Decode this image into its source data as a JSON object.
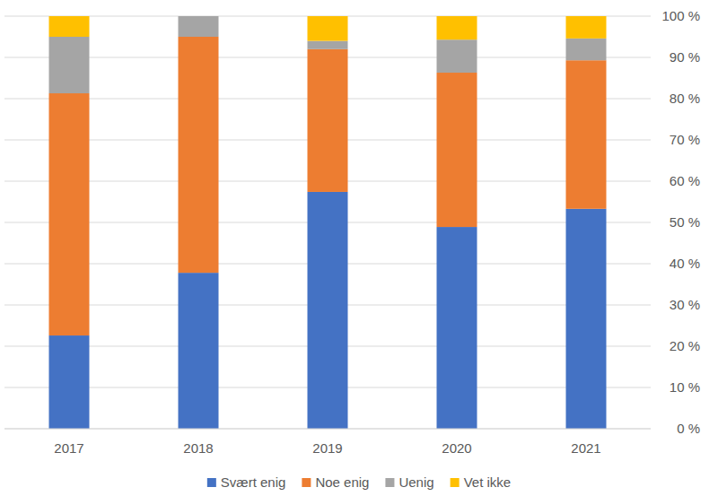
{
  "chart_data": {
    "type": "bar",
    "stacked": true,
    "grid": true,
    "legend": "bottom",
    "categories": [
      "2017",
      "2018",
      "2019",
      "2020",
      "2021"
    ],
    "series": [
      {
        "name": "Svært enig",
        "color": "#4472c4",
        "values": [
          22.6,
          37.8,
          57.4,
          48.9,
          53.3
        ]
      },
      {
        "name": "Noe enig",
        "color": "#ed7d31",
        "values": [
          58.7,
          57.2,
          34.6,
          37.4,
          36.0
        ]
      },
      {
        "name": "Uenig",
        "color": "#a5a5a5",
        "values": [
          13.7,
          5.0,
          2.0,
          8.0,
          5.3
        ]
      },
      {
        "name": "Vet ikke",
        "color": "#ffc000",
        "values": [
          5.0,
          0.0,
          6.0,
          5.7,
          5.4
        ]
      }
    ],
    "ylim": [
      0,
      100
    ],
    "yticks": [
      {
        "value": 0,
        "label": "0 %"
      },
      {
        "value": 10,
        "label": "10 %"
      },
      {
        "value": 20,
        "label": "20 %"
      },
      {
        "value": 30,
        "label": "30 %"
      },
      {
        "value": 40,
        "label": "40 %"
      },
      {
        "value": 50,
        "label": "50 %"
      },
      {
        "value": 60,
        "label": "60 %"
      },
      {
        "value": 70,
        "label": "70 %"
      },
      {
        "value": 80,
        "label": "80 %"
      },
      {
        "value": 90,
        "label": "90 %"
      },
      {
        "value": 100,
        "label": "100 %"
      }
    ]
  }
}
